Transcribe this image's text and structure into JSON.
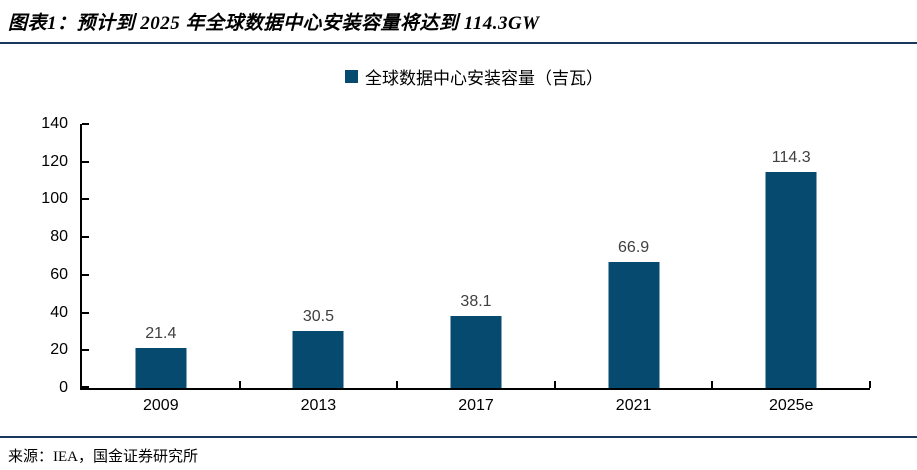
{
  "page": {
    "title": "图表1：预计到 2025 年全球数据中心安装容量将达到 114.3GW",
    "source": "来源：IEA，国金证券研究所"
  },
  "legend": {
    "label": "全球数据中心安装容量（吉瓦）",
    "marker": "square-icon",
    "marker_color": "#074A6F"
  },
  "colors": {
    "bar": "#074A6F",
    "rule": "#17375E",
    "axis": "#000000",
    "data_label": "#404040",
    "background": "#FFFFFF"
  },
  "chart_data": {
    "type": "bar",
    "title": "预计到 2025 年全球数据中心安装容量将达到 114.3GW",
    "series": [
      {
        "name": "全球数据中心安装容量（吉瓦）",
        "values": [
          21.4,
          30.5,
          38.1,
          66.9,
          114.3
        ]
      }
    ],
    "categories": [
      "2009",
      "2013",
      "2017",
      "2021",
      "2025e"
    ],
    "values": [
      21.4,
      30.5,
      38.1,
      66.9,
      114.3
    ],
    "xlabel": "",
    "ylabel": "",
    "ylim": [
      0,
      140
    ],
    "yticks": [
      0,
      20,
      40,
      60,
      80,
      100,
      120,
      140
    ],
    "grid": false,
    "data_labels": true,
    "legend_position": "top-center"
  }
}
